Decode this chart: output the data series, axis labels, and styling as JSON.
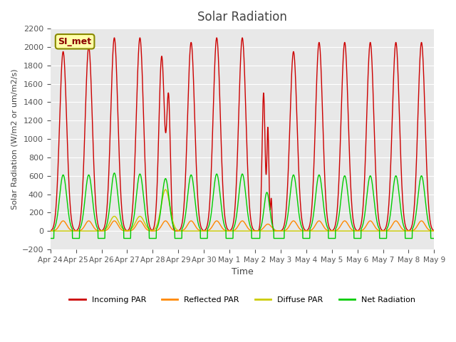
{
  "title": "Solar Radiation",
  "ylabel": "Solar Radiation (W/m2 or um/m2/s)",
  "xlabel": "Time",
  "ylim": [
    -200,
    2200
  ],
  "yticks": [
    -200,
    0,
    200,
    400,
    600,
    800,
    1000,
    1200,
    1400,
    1600,
    1800,
    2000,
    2200
  ],
  "xtick_labels": [
    "Apr 24",
    "Apr 25",
    "Apr 26",
    "Apr 27",
    "Apr 28",
    "Apr 29",
    "Apr 30",
    "May 1",
    "May 2",
    "May 3",
    "May 4",
    "May 5",
    "May 6",
    "May 7",
    "May 8",
    "May 9"
  ],
  "n_days": 15,
  "bg_color": "#e8e8e8",
  "line_colors": {
    "incoming": "#cc0000",
    "reflected": "#ff8800",
    "diffuse": "#cccc00",
    "net": "#00cc00"
  },
  "legend_labels": [
    "Incoming PAR",
    "Reflected PAR",
    "Diffuse PAR",
    "Net Radiation"
  ],
  "annotation_text": "SI_met",
  "annotation_bg": "#ffffaa",
  "annotation_border": "#888800",
  "title_color": "#444444",
  "label_color": "#444444"
}
